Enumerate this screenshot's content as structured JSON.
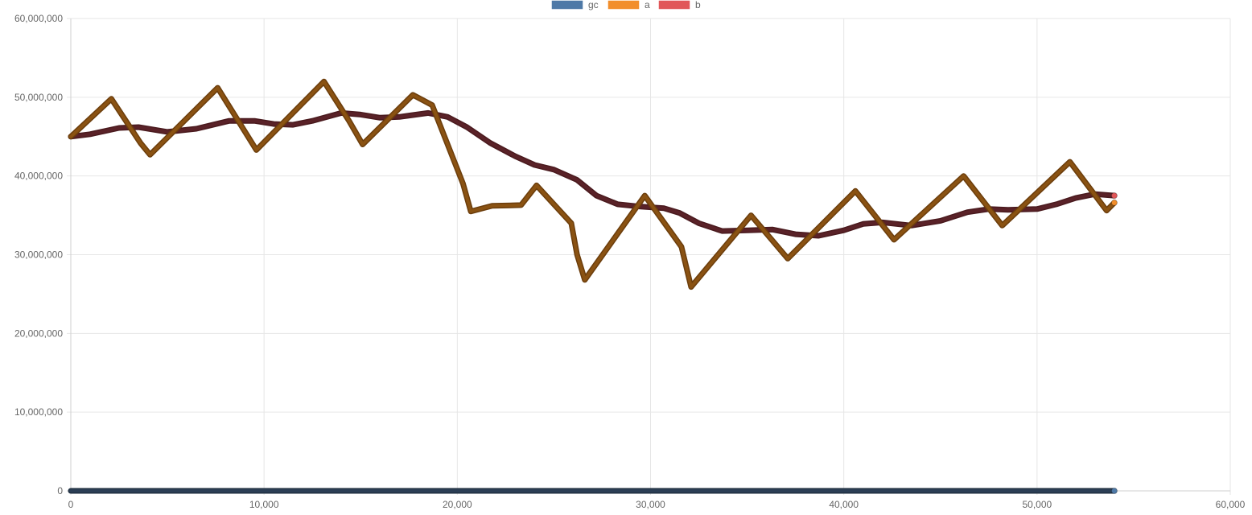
{
  "chart_data": {
    "type": "line",
    "title": "",
    "xlabel": "",
    "ylabel": "",
    "xlim": [
      0,
      60000
    ],
    "ylim": [
      0,
      60000000
    ],
    "x_ticks": [
      "0",
      "10,000",
      "20,000",
      "30,000",
      "40,000",
      "50,000",
      "60,000"
    ],
    "y_ticks": [
      "0",
      "10,000,000",
      "20,000,000",
      "30,000,000",
      "40,000,000",
      "50,000,000",
      "60,000,000"
    ],
    "grid": true,
    "legend_position": "top-center",
    "series": [
      {
        "name": "gc",
        "color": "#4e79a7",
        "points": [
          [
            0,
            0
          ],
          [
            54000,
            0
          ]
        ]
      },
      {
        "name": "a",
        "color": "#f28e2b",
        "points": [
          [
            0,
            45000000
          ],
          [
            2100,
            49800000
          ],
          [
            3600,
            44200000
          ],
          [
            4100,
            42700000
          ],
          [
            7600,
            51200000
          ],
          [
            9600,
            43300000
          ],
          [
            13100,
            52000000
          ],
          [
            14400,
            47000000
          ],
          [
            15100,
            44000000
          ],
          [
            17700,
            50300000
          ],
          [
            18700,
            49000000
          ],
          [
            20300,
            39000000
          ],
          [
            20700,
            35500000
          ],
          [
            21800,
            36200000
          ],
          [
            23300,
            36300000
          ],
          [
            24100,
            38800000
          ],
          [
            25900,
            34000000
          ],
          [
            26200,
            30000000
          ],
          [
            26600,
            26800000
          ],
          [
            29700,
            37500000
          ],
          [
            31600,
            31000000
          ],
          [
            32100,
            25900000
          ],
          [
            35200,
            35000000
          ],
          [
            37100,
            29500000
          ],
          [
            40600,
            38100000
          ],
          [
            42600,
            31900000
          ],
          [
            46200,
            40000000
          ],
          [
            48200,
            33700000
          ],
          [
            51700,
            41800000
          ],
          [
            53600,
            35600000
          ],
          [
            54000,
            36600000
          ]
        ]
      },
      {
        "name": "b",
        "color": "#e15759",
        "points": [
          [
            0,
            45000000
          ],
          [
            1000,
            45300000
          ],
          [
            2500,
            46100000
          ],
          [
            3500,
            46200000
          ],
          [
            5000,
            45600000
          ],
          [
            6500,
            46000000
          ],
          [
            8200,
            47000000
          ],
          [
            9500,
            47000000
          ],
          [
            10500,
            46600000
          ],
          [
            11500,
            46500000
          ],
          [
            12500,
            47000000
          ],
          [
            14000,
            48000000
          ],
          [
            15000,
            47800000
          ],
          [
            16000,
            47400000
          ],
          [
            17000,
            47500000
          ],
          [
            18500,
            48000000
          ],
          [
            19500,
            47500000
          ],
          [
            20500,
            46200000
          ],
          [
            21700,
            44200000
          ],
          [
            23000,
            42500000
          ],
          [
            24000,
            41400000
          ],
          [
            25000,
            40800000
          ],
          [
            26200,
            39500000
          ],
          [
            27200,
            37500000
          ],
          [
            28300,
            36400000
          ],
          [
            29500,
            36100000
          ],
          [
            30700,
            35900000
          ],
          [
            31500,
            35300000
          ],
          [
            32500,
            34000000
          ],
          [
            33700,
            33000000
          ],
          [
            35000,
            33100000
          ],
          [
            36300,
            33200000
          ],
          [
            37500,
            32600000
          ],
          [
            38700,
            32400000
          ],
          [
            40000,
            33100000
          ],
          [
            41000,
            33900000
          ],
          [
            42000,
            34100000
          ],
          [
            43500,
            33700000
          ],
          [
            45000,
            34300000
          ],
          [
            46400,
            35400000
          ],
          [
            47500,
            35800000
          ],
          [
            48500,
            35700000
          ],
          [
            50000,
            35800000
          ],
          [
            51000,
            36400000
          ],
          [
            52000,
            37200000
          ],
          [
            53000,
            37700000
          ],
          [
            54000,
            37500000
          ]
        ]
      }
    ]
  }
}
